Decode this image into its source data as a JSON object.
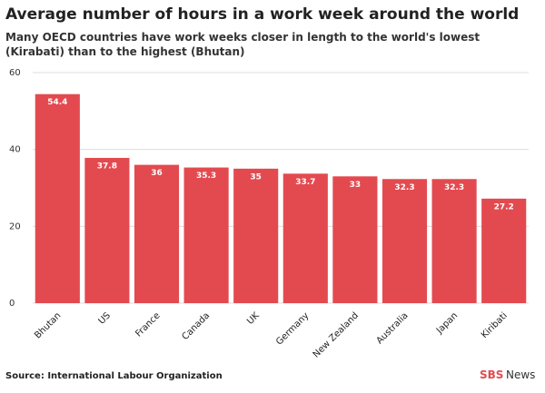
{
  "chart_data": {
    "type": "bar",
    "title": "Average number of hours in a work week around the world",
    "subtitle": "Many OECD countries have work weeks closer in length to the world's lowest (Kirabati) than to the highest (Bhutan)",
    "categories": [
      "Bhutan",
      "US",
      "France",
      "Canada",
      "UK",
      "Germany",
      "New Zealand",
      "Australia",
      "Japan",
      "Kiribati"
    ],
    "values": [
      54.4,
      37.8,
      36,
      35.3,
      35,
      33.7,
      33,
      32.3,
      32.3,
      27.2
    ],
    "color": "#e34a4f",
    "ylim": [
      0,
      60
    ],
    "yticks": [
      0,
      20,
      40,
      60
    ],
    "grid": true,
    "source": "Source: International Labour Organization",
    "logo": {
      "brand": "SBS",
      "suffix": "News"
    }
  }
}
